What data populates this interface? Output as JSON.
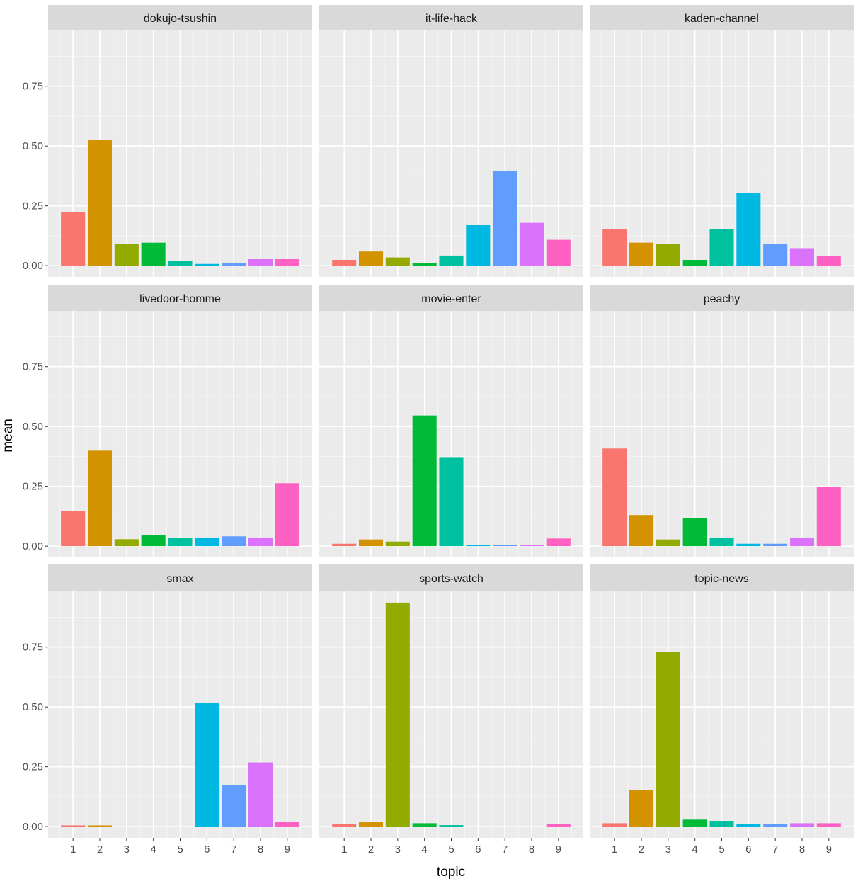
{
  "chart_data": {
    "type": "bar",
    "layout": "facet_wrap 3x3",
    "xlabel": "topic",
    "ylabel": "mean",
    "x_categories": [
      "1",
      "2",
      "3",
      "4",
      "5",
      "6",
      "7",
      "8",
      "9"
    ],
    "y_ticks": [
      "0.00",
      "0.25",
      "0.50",
      "0.75"
    ],
    "y_tick_values": [
      0,
      0.25,
      0.5,
      0.75
    ],
    "ylim": [
      -0.047,
      0.983
    ],
    "grid": true,
    "legend": "none",
    "fill_colors": [
      "#F8766D",
      "#D39200",
      "#93AA00",
      "#00BA38",
      "#00C19F",
      "#00B9E3",
      "#619CFF",
      "#DB72FB",
      "#FF61C3"
    ],
    "panels": [
      {
        "title": "dokujo-tsushin",
        "values": [
          0.223,
          0.525,
          0.091,
          0.096,
          0.019,
          0.007,
          0.011,
          0.029,
          0.029
        ]
      },
      {
        "title": "it-life-hack",
        "values": [
          0.024,
          0.059,
          0.034,
          0.011,
          0.042,
          0.171,
          0.397,
          0.179,
          0.108
        ]
      },
      {
        "title": "kaden-channel",
        "values": [
          0.152,
          0.096,
          0.091,
          0.024,
          0.152,
          0.303,
          0.091,
          0.073,
          0.041
        ]
      },
      {
        "title": "livedoor-homme",
        "values": [
          0.147,
          0.399,
          0.029,
          0.045,
          0.033,
          0.036,
          0.041,
          0.036,
          0.263
        ]
      },
      {
        "title": "movie-enter",
        "values": [
          0.01,
          0.028,
          0.019,
          0.546,
          0.372,
          0.006,
          0.005,
          0.005,
          0.032
        ]
      },
      {
        "title": "peachy",
        "values": [
          0.408,
          0.13,
          0.028,
          0.116,
          0.036,
          0.01,
          0.01,
          0.036,
          0.249
        ]
      },
      {
        "title": "smax",
        "values": [
          0.005,
          0.005,
          0.0,
          0.0,
          0.0,
          0.518,
          0.175,
          0.268,
          0.019
        ]
      },
      {
        "title": "sports-watch",
        "values": [
          0.01,
          0.018,
          0.936,
          0.014,
          0.006,
          0.0,
          0.0,
          0.0,
          0.01
        ]
      },
      {
        "title": "topic-news",
        "values": [
          0.014,
          0.152,
          0.731,
          0.029,
          0.024,
          0.01,
          0.01,
          0.014,
          0.014
        ]
      }
    ]
  }
}
